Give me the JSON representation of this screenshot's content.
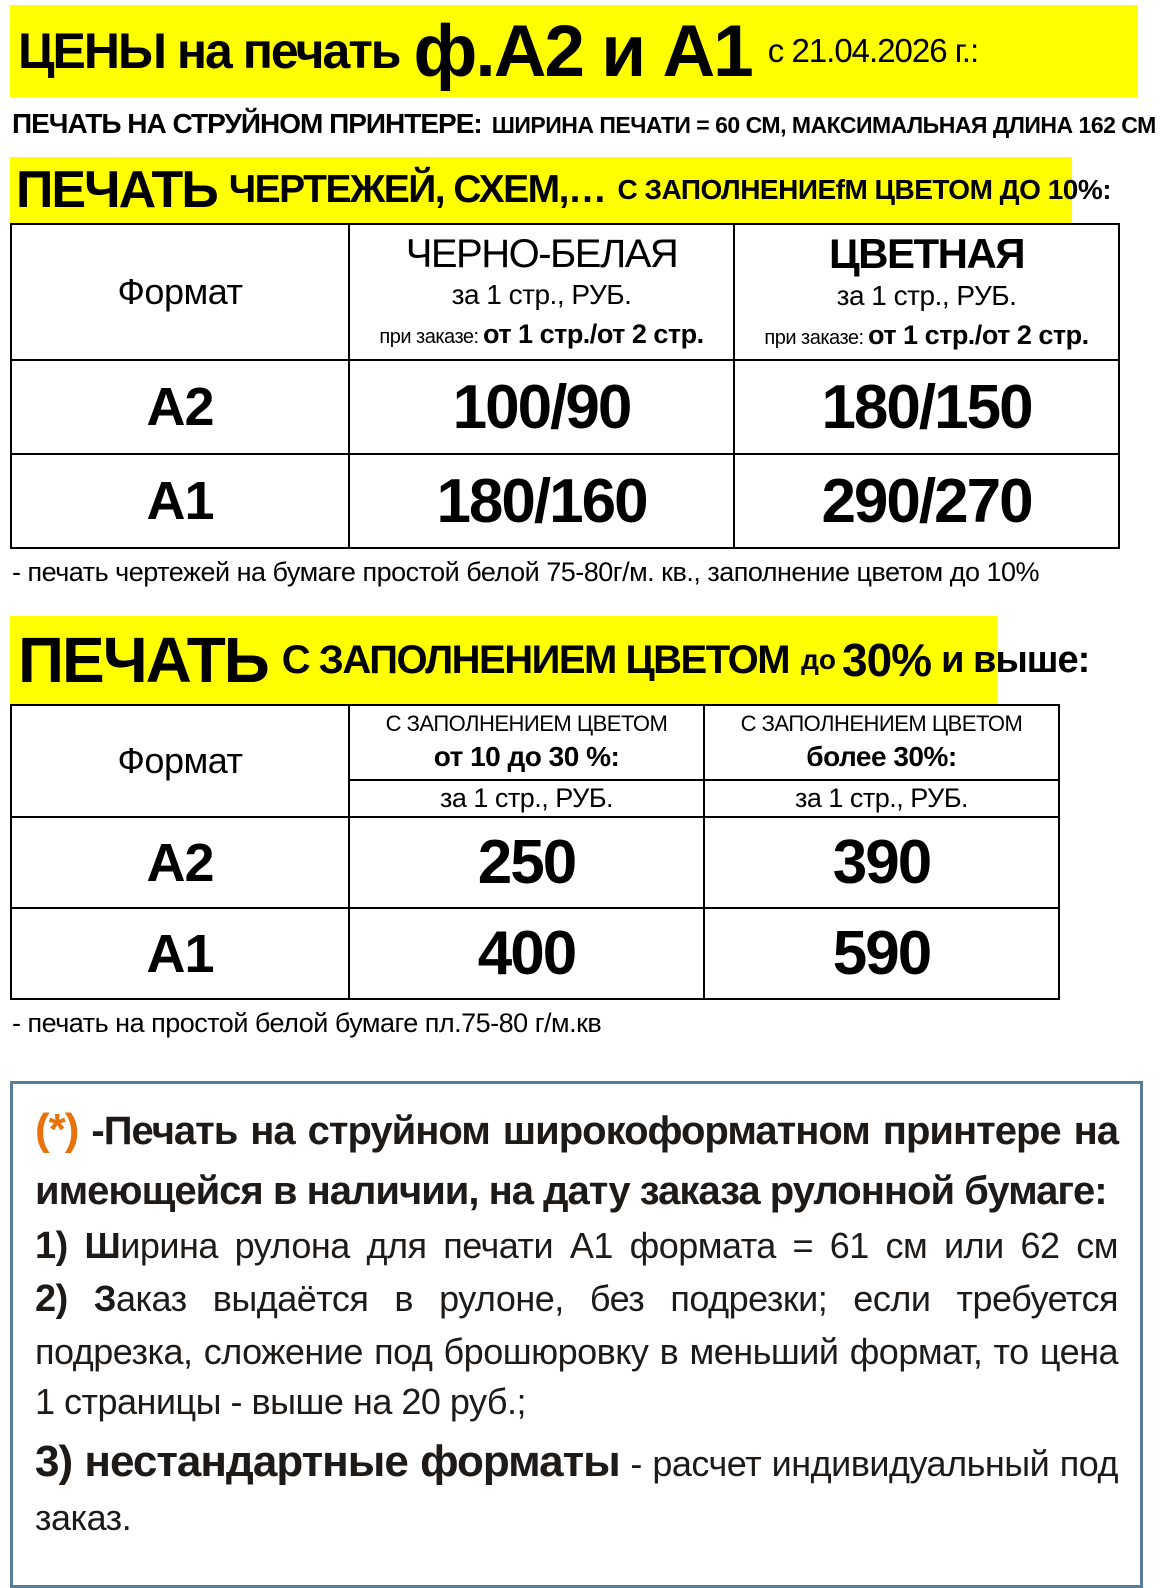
{
  "header": {
    "title_prefix": "ЦЕНЫ на печать",
    "title_formats": "ф.А2 и А1",
    "title_date": "с 21.04.2026 г.:",
    "subtitle_lead": "ПЕЧАТЬ НА СТРУЙНОМ ПРИНТЕРЕ:",
    "subtitle_detail": "ШИРИНА ПЕЧАТИ = 60 СМ, МАКСИМАЛЬНАЯ ДЛИНА 162 СМ",
    "subtitle_asterisk": "(*)"
  },
  "section1": {
    "heading_word": "ПЕЧАТЬ",
    "heading_mid": "ЧЕРТЕЖЕЙ, СХЕМ,…",
    "heading_tail": "С ЗАПОЛНЕНИЕfМ ЦВЕТОМ ДО 10%:",
    "table": {
      "format_header": "Формат",
      "col_bw_title": "ЧЕРНО-БЕЛАЯ",
      "col_color_title": "ЦВЕТНАЯ",
      "per_page": "за 1 стр., РУБ.",
      "order_label": "при заказе:",
      "order_value": "от 1 стр./от 2 стр.",
      "rows": [
        {
          "format": "А2",
          "bw": "100/90",
          "color": "180/150"
        },
        {
          "format": "А1",
          "bw": "180/160",
          "color": "290/270"
        }
      ]
    },
    "note": "- печать чертежей на бумаге простой белой 75-80г/м. кв., заполнение цветом до 10%"
  },
  "section2": {
    "heading_word": "ПЕЧАТЬ",
    "heading_mid": "С ЗАПОЛНЕНИЕМ ЦВЕТОМ",
    "heading_do": "до",
    "heading_pct": "30%",
    "heading_tail": "и выше:",
    "table": {
      "format_header": "Формат",
      "fill_label": "С ЗАПОЛНЕНИЕМ ЦВЕТОМ",
      "range1": "от 10 до 30 %:",
      "range2": "более 30%:",
      "per_page": "за 1 стр., РУБ.",
      "rows": [
        {
          "format": "А2",
          "v1": "250",
          "v2": "390"
        },
        {
          "format": "А1",
          "v1": "400",
          "v2": "590"
        }
      ]
    },
    "note": "- печать на простой белой бумаге пл.75-80 г/м.кв"
  },
  "footnote": {
    "asterisk": "(*)",
    "intro": "-Печать на струйном широкоформатном принтере на имеющейся в наличии, на дату заказа рулонной бумаге:",
    "item1_num": "1)",
    "item1_lead": "Ш",
    "item1_text": "ирина рулона для печати А1 формата = 61 см или 62 см",
    "item2_num": "2)",
    "item2_lead": "З",
    "item2_text": "аказ выдаётся в рулоне, без подрезки; если требуется подрезка, сложение под брошюровку в меньший формат, то цена 1 страницы - выше на 20 руб.;",
    "item3_lead": "3) нестандартные форматы",
    "item3_text": "- расчет индивидуальный под заказ."
  },
  "colors": {
    "highlight": "#FFFF00",
    "accent_orange": "#E8720C",
    "box_border": "#567D9B"
  }
}
